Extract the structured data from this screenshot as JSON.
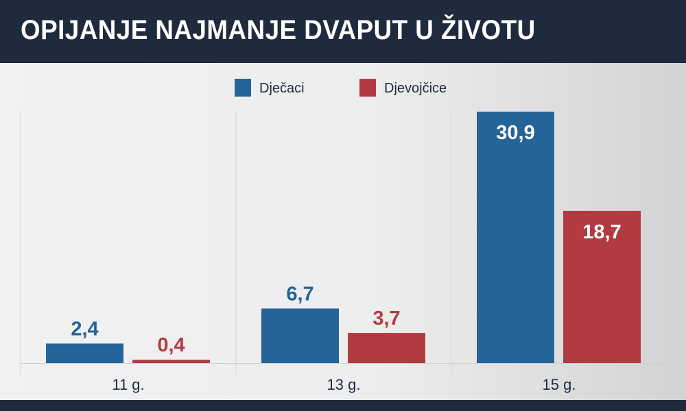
{
  "header": {
    "title": "OPIJANJE NAJMANJE DVAPUT U ŽIVOTU"
  },
  "colors": {
    "header_bg": "#1f2a3c",
    "series_boys": "#246499",
    "series_girls": "#b23b42",
    "label_on_bar": "#ffffff"
  },
  "chart_data": {
    "type": "bar",
    "title": "OPIJANJE NAJMANJE DVAPUT U ŽIVOTU",
    "categories": [
      "11 g.",
      "13 g.",
      "15 g."
    ],
    "series": [
      {
        "name": "Dječaci",
        "values": [
          2.4,
          6.7,
          30.9
        ],
        "labels": [
          "2,4",
          "6,7",
          "30,9"
        ],
        "color": "#246499"
      },
      {
        "name": "Djevojčice",
        "values": [
          0.4,
          3.7,
          18.7
        ],
        "labels": [
          "0,4",
          "3,7",
          "18,7"
        ],
        "color": "#b23b42"
      }
    ],
    "ylim": [
      0,
      30.9
    ],
    "legend": "top-center",
    "grid": "vertical separators"
  }
}
